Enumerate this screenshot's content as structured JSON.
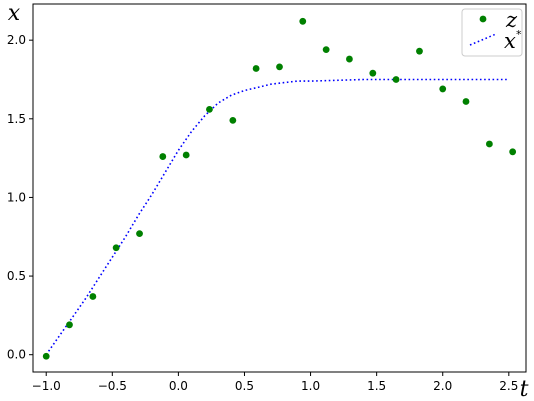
{
  "chart_data": {
    "type": "scatter",
    "xlabel": "t",
    "ylabel": "x",
    "xlim": [
      -1.1,
      2.63
    ],
    "ylim": [
      -0.11,
      2.23
    ],
    "xticks": [
      -1.0,
      -0.5,
      0.0,
      0.5,
      1.0,
      1.5,
      2.0,
      2.5
    ],
    "xtick_labels": [
      "−1.0",
      "−0.5",
      "0.0",
      "0.5",
      "1.0",
      "1.5",
      "2.0",
      "2.5"
    ],
    "yticks": [
      0.0,
      0.5,
      1.0,
      1.5,
      2.0
    ],
    "ytick_labels": [
      "0.0",
      "0.5",
      "1.0",
      "1.5",
      "2.0"
    ],
    "grid": false,
    "legend_position": "top-right",
    "series": [
      {
        "name": "z",
        "style": "markers",
        "color": "#008000",
        "x": [
          -1.0,
          -0.824,
          -0.647,
          -0.471,
          -0.294,
          -0.118,
          0.059,
          0.235,
          0.412,
          0.588,
          0.765,
          0.941,
          1.118,
          1.294,
          1.471,
          1.647,
          1.824,
          2.0,
          2.176,
          2.353,
          2.529
        ],
        "y": [
          -0.01,
          0.19,
          0.37,
          0.68,
          0.77,
          1.26,
          1.27,
          1.56,
          1.49,
          1.82,
          1.83,
          2.12,
          1.94,
          1.88,
          1.79,
          1.75,
          1.93,
          1.69,
          1.61,
          1.34,
          1.29
        ]
      },
      {
        "name": "x",
        "name_superscript": "*",
        "style": "dotted",
        "color": "#0000ff",
        "x": [
          -1.0,
          -0.9,
          -0.8,
          -0.7,
          -0.6,
          -0.5,
          -0.4,
          -0.3,
          -0.2,
          -0.1,
          0.0,
          0.1,
          0.2,
          0.3,
          0.4,
          0.5,
          0.6,
          0.7,
          0.8,
          0.9,
          1.0,
          1.2,
          1.4,
          1.6,
          1.8,
          2.0,
          2.2,
          2.4,
          2.5
        ],
        "y": [
          0.0,
          0.12,
          0.24,
          0.36,
          0.49,
          0.62,
          0.75,
          0.89,
          1.02,
          1.16,
          1.3,
          1.42,
          1.52,
          1.6,
          1.65,
          1.68,
          1.7,
          1.72,
          1.73,
          1.74,
          1.74,
          1.745,
          1.75,
          1.75,
          1.75,
          1.75,
          1.75,
          1.75,
          1.75
        ]
      }
    ]
  }
}
